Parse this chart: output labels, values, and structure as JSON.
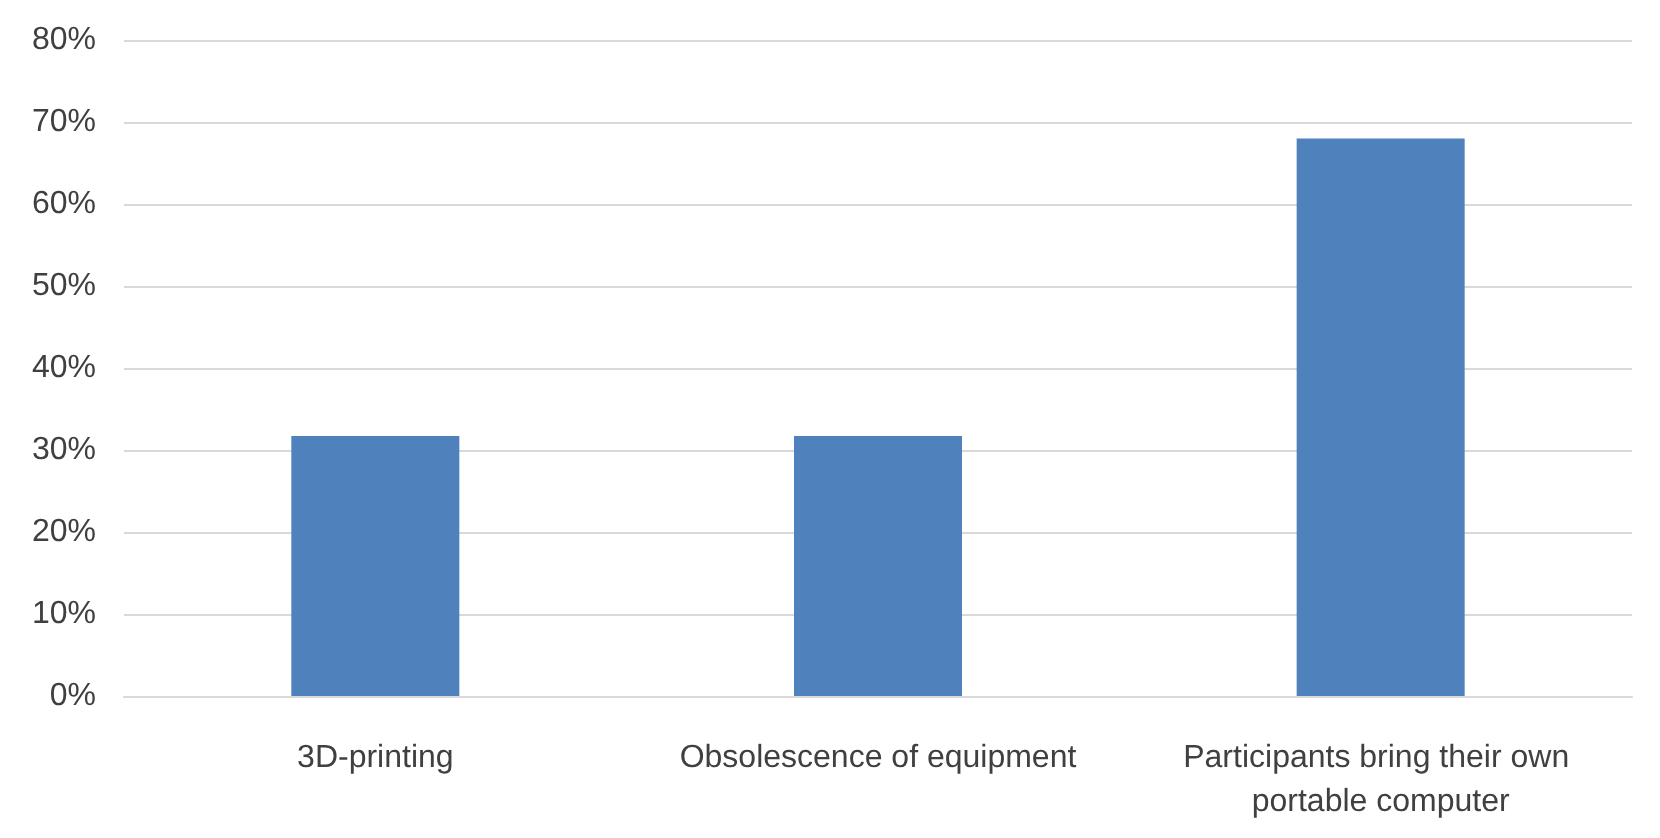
{
  "chart_data": {
    "type": "bar",
    "categories": [
      "3D-printing",
      "Obsolescence of equipment",
      "Participants bring their own portable computer"
    ],
    "values": [
      31.7,
      31.7,
      68
    ],
    "color": "#4f81bd",
    "ylim": [
      0,
      80
    ],
    "yticks": [
      {
        "value": 0,
        "label": "0%"
      },
      {
        "value": 10,
        "label": "10%"
      },
      {
        "value": 20,
        "label": "20%"
      },
      {
        "value": 30,
        "label": "30%"
      },
      {
        "value": 40,
        "label": "40%"
      },
      {
        "value": 50,
        "label": "50%"
      },
      {
        "value": 60,
        "label": "60%"
      },
      {
        "value": 70,
        "label": "70%"
      },
      {
        "value": 80,
        "label": "80%"
      }
    ],
    "grid": "y"
  }
}
